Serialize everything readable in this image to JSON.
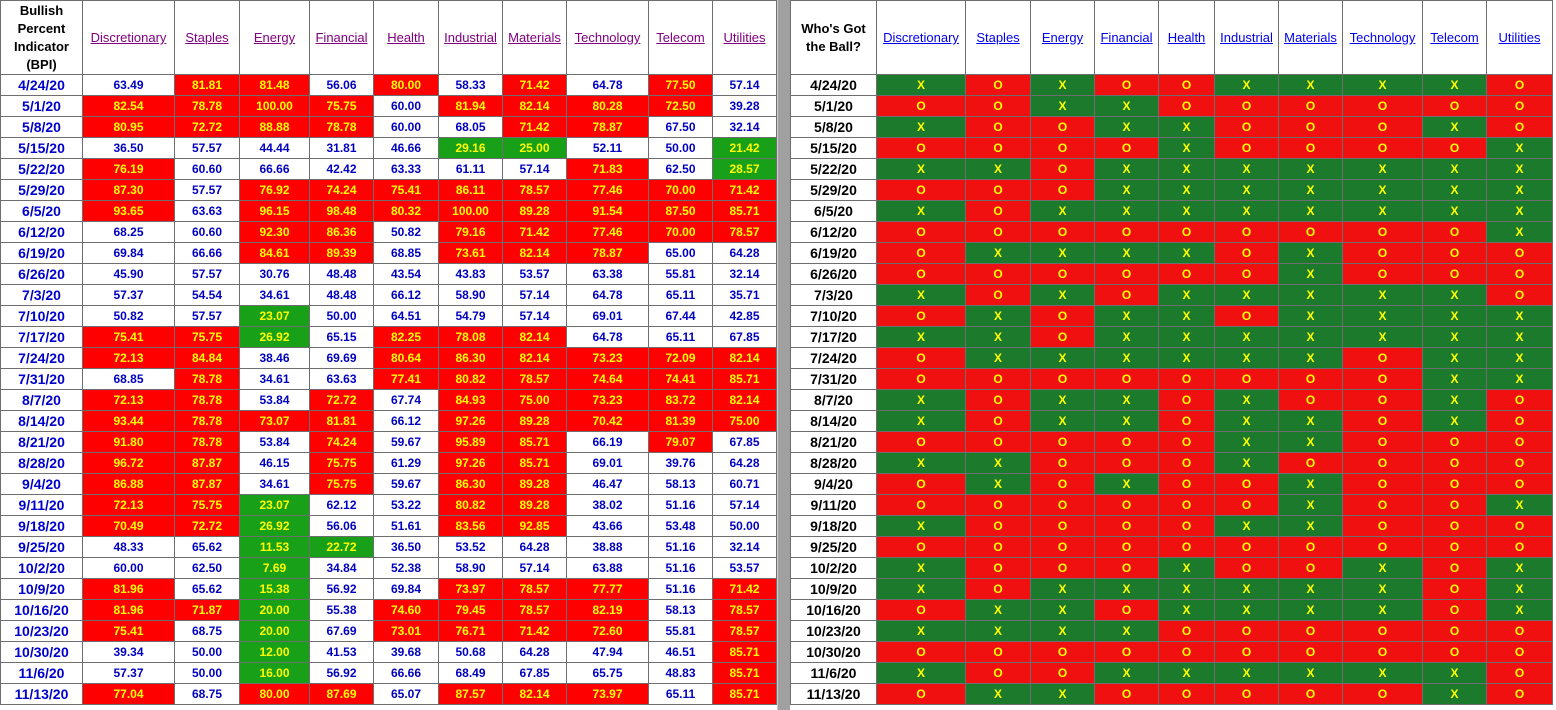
{
  "left_table": {
    "header": [
      "Bullish Percent Indicator (BPI)",
      "Discretionary",
      "Staples",
      "Energy",
      "Financial",
      "Health",
      "Industrial",
      "Materials",
      "Technology",
      "Telecom",
      "Utilities"
    ],
    "rows": [
      [
        "4/24/20",
        "63.49",
        "81.81",
        "81.48",
        "56.06",
        "80.00",
        "58.33",
        "71.42",
        "64.78",
        "77.50",
        "57.14"
      ],
      [
        "5/1/20",
        "82.54",
        "78.78",
        "100.00",
        "75.75",
        "60.00",
        "81.94",
        "82.14",
        "80.28",
        "72.50",
        "39.28"
      ],
      [
        "5/8/20",
        "80.95",
        "72.72",
        "88.88",
        "78.78",
        "60.00",
        "68.05",
        "71.42",
        "78.87",
        "67.50",
        "32.14"
      ],
      [
        "5/15/20",
        "36.50",
        "57.57",
        "44.44",
        "31.81",
        "46.66",
        "29.16",
        "25.00",
        "52.11",
        "50.00",
        "21.42"
      ],
      [
        "5/22/20",
        "76.19",
        "60.60",
        "66.66",
        "42.42",
        "63.33",
        "61.11",
        "57.14",
        "71.83",
        "62.50",
        "28.57"
      ],
      [
        "5/29/20",
        "87.30",
        "57.57",
        "76.92",
        "74.24",
        "75.41",
        "86.11",
        "78.57",
        "77.46",
        "70.00",
        "71.42"
      ],
      [
        "6/5/20",
        "93.65",
        "63.63",
        "96.15",
        "98.48",
        "80.32",
        "100.00",
        "89.28",
        "91.54",
        "87.50",
        "85.71"
      ],
      [
        "6/12/20",
        "68.25",
        "60.60",
        "92.30",
        "86.36",
        "50.82",
        "79.16",
        "71.42",
        "77.46",
        "70.00",
        "78.57"
      ],
      [
        "6/19/20",
        "69.84",
        "66.66",
        "84.61",
        "89.39",
        "68.85",
        "73.61",
        "82.14",
        "78.87",
        "65.00",
        "64.28"
      ],
      [
        "6/26/20",
        "45.90",
        "57.57",
        "30.76",
        "48.48",
        "43.54",
        "43.83",
        "53.57",
        "63.38",
        "55.81",
        "32.14"
      ],
      [
        "7/3/20",
        "57.37",
        "54.54",
        "34.61",
        "48.48",
        "66.12",
        "58.90",
        "57.14",
        "64.78",
        "65.11",
        "35.71"
      ],
      [
        "7/10/20",
        "50.82",
        "57.57",
        "23.07",
        "50.00",
        "64.51",
        "54.79",
        "57.14",
        "69.01",
        "67.44",
        "42.85"
      ],
      [
        "7/17/20",
        "75.41",
        "75.75",
        "26.92",
        "65.15",
        "82.25",
        "78.08",
        "82.14",
        "64.78",
        "65.11",
        "67.85"
      ],
      [
        "7/24/20",
        "72.13",
        "84.84",
        "38.46",
        "69.69",
        "80.64",
        "86.30",
        "82.14",
        "73.23",
        "72.09",
        "82.14"
      ],
      [
        "7/31/20",
        "68.85",
        "78.78",
        "34.61",
        "63.63",
        "77.41",
        "80.82",
        "78.57",
        "74.64",
        "74.41",
        "85.71"
      ],
      [
        "8/7/20",
        "72.13",
        "78.78",
        "53.84",
        "72.72",
        "67.74",
        "84.93",
        "75.00",
        "73.23",
        "83.72",
        "82.14"
      ],
      [
        "8/14/20",
        "93.44",
        "78.78",
        "73.07",
        "81.81",
        "66.12",
        "97.26",
        "89.28",
        "70.42",
        "81.39",
        "75.00"
      ],
      [
        "8/21/20",
        "91.80",
        "78.78",
        "53.84",
        "74.24",
        "59.67",
        "95.89",
        "85.71",
        "66.19",
        "79.07",
        "67.85"
      ],
      [
        "8/28/20",
        "96.72",
        "87.87",
        "46.15",
        "75.75",
        "61.29",
        "97.26",
        "85.71",
        "69.01",
        "39.76",
        "64.28"
      ],
      [
        "9/4/20",
        "86.88",
        "87.87",
        "34.61",
        "75.75",
        "59.67",
        "86.30",
        "89.28",
        "46.47",
        "58.13",
        "60.71"
      ],
      [
        "9/11/20",
        "72.13",
        "75.75",
        "23.07",
        "62.12",
        "53.22",
        "80.82",
        "89.28",
        "38.02",
        "51.16",
        "57.14"
      ],
      [
        "9/18/20",
        "70.49",
        "72.72",
        "26.92",
        "56.06",
        "51.61",
        "83.56",
        "92.85",
        "43.66",
        "53.48",
        "50.00"
      ],
      [
        "9/25/20",
        "48.33",
        "65.62",
        "11.53",
        "22.72",
        "36.50",
        "53.52",
        "64.28",
        "38.88",
        "51.16",
        "32.14"
      ],
      [
        "10/2/20",
        "60.00",
        "62.50",
        "7.69",
        "34.84",
        "52.38",
        "58.90",
        "57.14",
        "63.88",
        "51.16",
        "53.57"
      ],
      [
        "10/9/20",
        "81.96",
        "65.62",
        "15.38",
        "56.92",
        "69.84",
        "73.97",
        "78.57",
        "77.77",
        "51.16",
        "71.42"
      ],
      [
        "10/16/20",
        "81.96",
        "71.87",
        "20.00",
        "55.38",
        "74.60",
        "79.45",
        "78.57",
        "82.19",
        "58.13",
        "78.57"
      ],
      [
        "10/23/20",
        "75.41",
        "68.75",
        "20.00",
        "67.69",
        "73.01",
        "76.71",
        "71.42",
        "72.60",
        "55.81",
        "78.57"
      ],
      [
        "10/30/20",
        "39.34",
        "50.00",
        "12.00",
        "41.53",
        "39.68",
        "50.68",
        "64.28",
        "47.94",
        "46.51",
        "85.71"
      ],
      [
        "11/6/20",
        "57.37",
        "50.00",
        "16.00",
        "56.92",
        "66.66",
        "68.49",
        "67.85",
        "65.75",
        "48.83",
        "85.71"
      ],
      [
        "11/13/20",
        "77.04",
        "68.75",
        "80.00",
        "87.69",
        "65.07",
        "87.57",
        "82.14",
        "73.97",
        "65.11",
        "85.71"
      ]
    ]
  },
  "right_table": {
    "header": [
      "Who's Got the Ball?",
      "Discretionary",
      "Staples",
      "Energy",
      "Financial",
      "Health",
      "Industrial",
      "Materials",
      "Technology",
      "Telecom",
      "Utilities"
    ],
    "rows": [
      [
        "4/24/20",
        "X",
        "O",
        "X",
        "O",
        "O",
        "X",
        "X",
        "X",
        "X",
        "O"
      ],
      [
        "5/1/20",
        "O",
        "O",
        "X",
        "X",
        "O",
        "O",
        "O",
        "O",
        "O",
        "O"
      ],
      [
        "5/8/20",
        "X",
        "O",
        "O",
        "X",
        "X",
        "O",
        "O",
        "O",
        "X",
        "O"
      ],
      [
        "5/15/20",
        "O",
        "O",
        "O",
        "O",
        "X",
        "O",
        "O",
        "O",
        "O",
        "X"
      ],
      [
        "5/22/20",
        "X",
        "X",
        "O",
        "X",
        "X",
        "X",
        "X",
        "X",
        "X",
        "X"
      ],
      [
        "5/29/20",
        "O",
        "O",
        "O",
        "X",
        "X",
        "X",
        "X",
        "X",
        "X",
        "X"
      ],
      [
        "6/5/20",
        "X",
        "O",
        "X",
        "X",
        "X",
        "X",
        "X",
        "X",
        "X",
        "X"
      ],
      [
        "6/12/20",
        "O",
        "O",
        "O",
        "O",
        "O",
        "O",
        "O",
        "O",
        "O",
        "X"
      ],
      [
        "6/19/20",
        "O",
        "X",
        "X",
        "X",
        "X",
        "O",
        "X",
        "O",
        "O",
        "O"
      ],
      [
        "6/26/20",
        "O",
        "O",
        "O",
        "O",
        "O",
        "O",
        "X",
        "O",
        "O",
        "O"
      ],
      [
        "7/3/20",
        "X",
        "O",
        "X",
        "O",
        "X",
        "X",
        "X",
        "X",
        "X",
        "O"
      ],
      [
        "7/10/20",
        "O",
        "X",
        "O",
        "X",
        "X",
        "O",
        "X",
        "X",
        "X",
        "X"
      ],
      [
        "7/17/20",
        "X",
        "X",
        "O",
        "X",
        "X",
        "X",
        "X",
        "X",
        "X",
        "X"
      ],
      [
        "7/24/20",
        "O",
        "X",
        "X",
        "X",
        "X",
        "X",
        "X",
        "O",
        "X",
        "X"
      ],
      [
        "7/31/20",
        "O",
        "O",
        "O",
        "O",
        "O",
        "O",
        "O",
        "O",
        "X",
        "X"
      ],
      [
        "8/7/20",
        "X",
        "O",
        "X",
        "X",
        "O",
        "X",
        "O",
        "O",
        "X",
        "O"
      ],
      [
        "8/14/20",
        "X",
        "O",
        "X",
        "X",
        "O",
        "X",
        "X",
        "O",
        "X",
        "O"
      ],
      [
        "8/21/20",
        "O",
        "O",
        "O",
        "O",
        "O",
        "X",
        "X",
        "O",
        "O",
        "O"
      ],
      [
        "8/28/20",
        "X",
        "X",
        "O",
        "O",
        "O",
        "X",
        "O",
        "O",
        "O",
        "O"
      ],
      [
        "9/4/20",
        "O",
        "X",
        "O",
        "X",
        "O",
        "O",
        "X",
        "O",
        "O",
        "O"
      ],
      [
        "9/11/20",
        "O",
        "O",
        "O",
        "O",
        "O",
        "O",
        "X",
        "O",
        "O",
        "X"
      ],
      [
        "9/18/20",
        "X",
        "O",
        "O",
        "O",
        "O",
        "X",
        "X",
        "O",
        "O",
        "O"
      ],
      [
        "9/25/20",
        "O",
        "O",
        "O",
        "O",
        "O",
        "O",
        "O",
        "O",
        "O",
        "O"
      ],
      [
        "10/2/20",
        "X",
        "O",
        "O",
        "O",
        "X",
        "O",
        "O",
        "X",
        "O",
        "X"
      ],
      [
        "10/9/20",
        "X",
        "O",
        "X",
        "X",
        "X",
        "X",
        "X",
        "X",
        "O",
        "X"
      ],
      [
        "10/16/20",
        "O",
        "X",
        "X",
        "O",
        "X",
        "X",
        "X",
        "X",
        "O",
        "X"
      ],
      [
        "10/23/20",
        "X",
        "X",
        "X",
        "X",
        "O",
        "O",
        "O",
        "O",
        "O",
        "O"
      ],
      [
        "10/30/20",
        "O",
        "O",
        "O",
        "O",
        "O",
        "O",
        "O",
        "O",
        "O",
        "O"
      ],
      [
        "11/6/20",
        "X",
        "O",
        "O",
        "X",
        "X",
        "X",
        "X",
        "X",
        "X",
        "O"
      ],
      [
        "11/13/20",
        "O",
        "X",
        "X",
        "O",
        "O",
        "O",
        "O",
        "O",
        "X",
        "O"
      ]
    ]
  }
}
